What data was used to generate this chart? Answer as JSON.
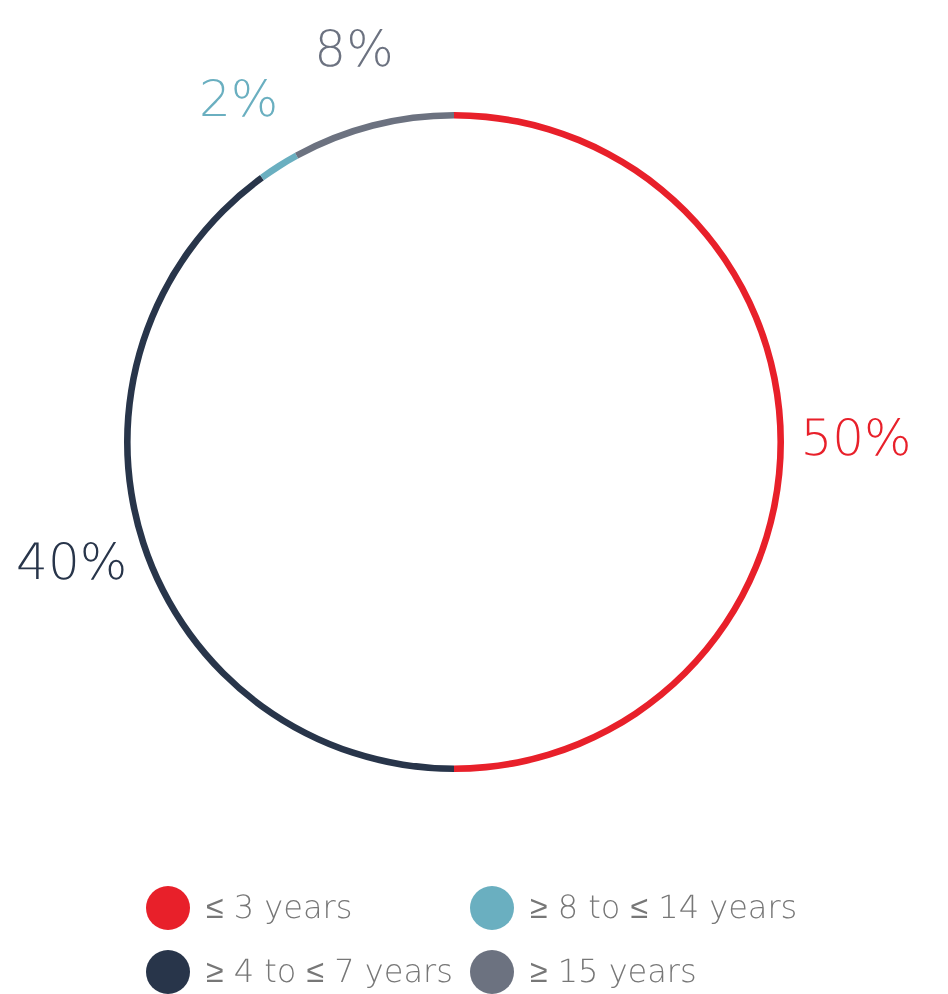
{
  "chart_data": {
    "type": "donut",
    "categories": [
      "≤ 3 years",
      "≥ 4 to ≤ 7 years",
      "≥ 8 to ≤ 14 years",
      "≥ 15 years"
    ],
    "values": [
      50,
      40,
      2,
      8
    ],
    "colors": [
      "#e8202a",
      "#28354a",
      "#6aafc0",
      "#6c7280"
    ],
    "value_labels": [
      "50%",
      "40%",
      "2%",
      "8%"
    ],
    "legend": "bottom"
  }
}
